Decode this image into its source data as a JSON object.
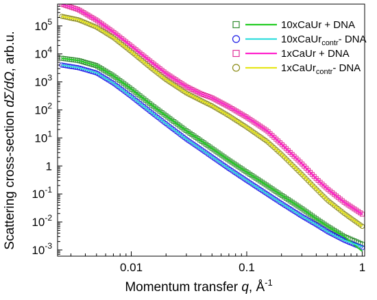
{
  "chart_data": {
    "type": "scatter",
    "xscale": "log",
    "yscale": "log",
    "xlim": [
      0.0023,
      1.05
    ],
    "ylim": [
      0.0006,
      600000
    ],
    "xlabel": {
      "main": "Momentum transfer ",
      "var": "q",
      "unit": ", Å",
      "sup": "-1"
    },
    "ylabel": {
      "main": "Scattering cross-section ",
      "var": "dΣ/dΩ",
      "unit": ", arb.u."
    },
    "grid": false,
    "legend_position": "top-right",
    "x_ticks": [
      {
        "value": 0.01,
        "label": "0.01"
      },
      {
        "value": 0.1,
        "label": "0.1"
      },
      {
        "value": 1,
        "label": "1"
      }
    ],
    "y_ticks": [
      {
        "value": 0.001,
        "base": "10",
        "exp": "-3"
      },
      {
        "value": 0.01,
        "base": "10",
        "exp": "-2"
      },
      {
        "value": 0.1,
        "base": "10",
        "exp": "-1"
      },
      {
        "value": 1,
        "base": "1",
        "exp": ""
      },
      {
        "value": 10,
        "base": "10",
        "exp": "1"
      },
      {
        "value": 100,
        "base": "10",
        "exp": "2"
      },
      {
        "value": 1000,
        "base": "10",
        "exp": "3"
      },
      {
        "value": 10000,
        "base": "10",
        "exp": "4"
      },
      {
        "value": 100000,
        "base": "10",
        "exp": "5"
      }
    ],
    "series": [
      {
        "name_main": "10xCaUr",
        "name_sub": "",
        "name_tail": " + DNA",
        "marker": "square",
        "marker_color": "#2e8b2e",
        "line_color": "#22cc22",
        "points": [
          [
            0.0025,
            7000
          ],
          [
            0.0035,
            5800
          ],
          [
            0.005,
            3800
          ],
          [
            0.007,
            1650
          ],
          [
            0.01,
            560
          ],
          [
            0.015,
            150
          ],
          [
            0.02,
            62
          ],
          [
            0.03,
            18
          ],
          [
            0.04,
            8
          ],
          [
            0.05,
            4.2
          ],
          [
            0.07,
            1.6
          ],
          [
            0.1,
            0.6
          ],
          [
            0.15,
            0.2
          ],
          [
            0.2,
            0.09
          ],
          [
            0.3,
            0.03
          ],
          [
            0.4,
            0.013
          ],
          [
            0.5,
            0.007
          ],
          [
            0.7,
            0.003
          ],
          [
            1.0,
            0.0016
          ]
        ],
        "fit": [
          [
            0.0025,
            7000
          ],
          [
            0.0035,
            5800
          ],
          [
            0.005,
            3800
          ],
          [
            0.007,
            1650
          ],
          [
            0.01,
            560
          ],
          [
            0.015,
            150
          ],
          [
            0.02,
            62
          ],
          [
            0.03,
            18
          ],
          [
            0.04,
            8
          ],
          [
            0.05,
            4.2
          ],
          [
            0.07,
            1.6
          ],
          [
            0.1,
            0.6
          ],
          [
            0.15,
            0.2
          ],
          [
            0.2,
            0.09
          ],
          [
            0.3,
            0.03
          ],
          [
            0.4,
            0.013
          ],
          [
            0.5,
            0.007
          ],
          [
            0.7,
            0.003
          ],
          [
            1.0,
            0.0009
          ]
        ]
      },
      {
        "name_main": "10xCaUr",
        "name_sub": "contr",
        "name_tail": "- DNA",
        "marker": "circle",
        "marker_color": "#1a1ae6",
        "line_color": "#33dddd",
        "points": [
          [
            0.0025,
            4000
          ],
          [
            0.0035,
            3200
          ],
          [
            0.005,
            2100
          ],
          [
            0.007,
            900
          ],
          [
            0.01,
            300
          ],
          [
            0.015,
            80
          ],
          [
            0.02,
            32
          ],
          [
            0.03,
            9
          ],
          [
            0.04,
            4
          ],
          [
            0.05,
            2.1
          ],
          [
            0.07,
            0.8
          ],
          [
            0.1,
            0.3
          ],
          [
            0.15,
            0.1
          ],
          [
            0.2,
            0.046
          ],
          [
            0.3,
            0.016
          ],
          [
            0.4,
            0.008
          ],
          [
            0.5,
            0.0045
          ],
          [
            0.7,
            0.0022
          ],
          [
            1.0,
            0.0012
          ]
        ],
        "fit": [
          [
            0.0025,
            4000
          ],
          [
            0.0035,
            3200
          ],
          [
            0.005,
            2100
          ],
          [
            0.007,
            900
          ],
          [
            0.01,
            300
          ],
          [
            0.015,
            80
          ],
          [
            0.02,
            32
          ],
          [
            0.03,
            9
          ],
          [
            0.04,
            4
          ],
          [
            0.05,
            2.1
          ],
          [
            0.07,
            0.8
          ],
          [
            0.1,
            0.3
          ],
          [
            0.15,
            0.1
          ],
          [
            0.2,
            0.046
          ],
          [
            0.3,
            0.016
          ],
          [
            0.4,
            0.008
          ],
          [
            0.5,
            0.0045
          ],
          [
            0.7,
            0.0022
          ],
          [
            1.0,
            0.0013
          ]
        ]
      },
      {
        "name_main": "1xCaUr",
        "name_sub": "",
        "name_tail": " + DNA",
        "marker": "square",
        "marker_color": "#e0309a",
        "line_color": "#ff22cc",
        "points": [
          [
            0.0025,
            600000
          ],
          [
            0.0035,
            380000
          ],
          [
            0.005,
            160000
          ],
          [
            0.007,
            60000
          ],
          [
            0.01,
            19000
          ],
          [
            0.015,
            5000
          ],
          [
            0.02,
            2000
          ],
          [
            0.03,
            680
          ],
          [
            0.04,
            380
          ],
          [
            0.05,
            270
          ],
          [
            0.07,
            130
          ],
          [
            0.1,
            55
          ],
          [
            0.15,
            18
          ],
          [
            0.2,
            6
          ],
          [
            0.3,
            1.2
          ],
          [
            0.4,
            0.35
          ],
          [
            0.5,
            0.15
          ],
          [
            0.7,
            0.05
          ],
          [
            1.0,
            0.019
          ]
        ],
        "fit": [
          [
            0.0025,
            600000
          ],
          [
            0.0035,
            380000
          ],
          [
            0.005,
            160000
          ],
          [
            0.007,
            60000
          ],
          [
            0.01,
            19000
          ],
          [
            0.015,
            5000
          ],
          [
            0.02,
            2000
          ],
          [
            0.03,
            680
          ],
          [
            0.04,
            380
          ],
          [
            0.05,
            270
          ],
          [
            0.07,
            130
          ],
          [
            0.1,
            55
          ],
          [
            0.15,
            18
          ],
          [
            0.2,
            6
          ],
          [
            0.3,
            1.2
          ],
          [
            0.4,
            0.35
          ],
          [
            0.5,
            0.15
          ],
          [
            0.7,
            0.05
          ],
          [
            1.0,
            0.019
          ]
        ]
      },
      {
        "name_main": "1xCaUr",
        "name_sub": "contr",
        "name_tail": "- DNA",
        "marker": "circle",
        "marker_color": "#8c8c18",
        "line_color": "#e6e61a",
        "points": [
          [
            0.0025,
            220000
          ],
          [
            0.0035,
            165000
          ],
          [
            0.005,
            90000
          ],
          [
            0.007,
            38000
          ],
          [
            0.01,
            12000
          ],
          [
            0.015,
            3000
          ],
          [
            0.02,
            1200
          ],
          [
            0.03,
            400
          ],
          [
            0.04,
            220
          ],
          [
            0.05,
            140
          ],
          [
            0.07,
            62
          ],
          [
            0.1,
            24
          ],
          [
            0.15,
            7.5
          ],
          [
            0.2,
            2.6
          ],
          [
            0.3,
            0.5
          ],
          [
            0.4,
            0.15
          ],
          [
            0.5,
            0.06
          ],
          [
            0.7,
            0.02
          ],
          [
            1.0,
            0.007
          ]
        ],
        "fit": [
          [
            0.0025,
            220000
          ],
          [
            0.0035,
            165000
          ],
          [
            0.005,
            90000
          ],
          [
            0.007,
            38000
          ],
          [
            0.01,
            12000
          ],
          [
            0.015,
            3000
          ],
          [
            0.02,
            1200
          ],
          [
            0.03,
            400
          ],
          [
            0.04,
            220
          ],
          [
            0.05,
            140
          ],
          [
            0.07,
            62
          ],
          [
            0.1,
            24
          ],
          [
            0.15,
            7.5
          ],
          [
            0.2,
            2.6
          ],
          [
            0.3,
            0.5
          ],
          [
            0.4,
            0.15
          ],
          [
            0.5,
            0.06
          ],
          [
            0.7,
            0.02
          ],
          [
            1.0,
            0.007
          ]
        ]
      }
    ]
  }
}
